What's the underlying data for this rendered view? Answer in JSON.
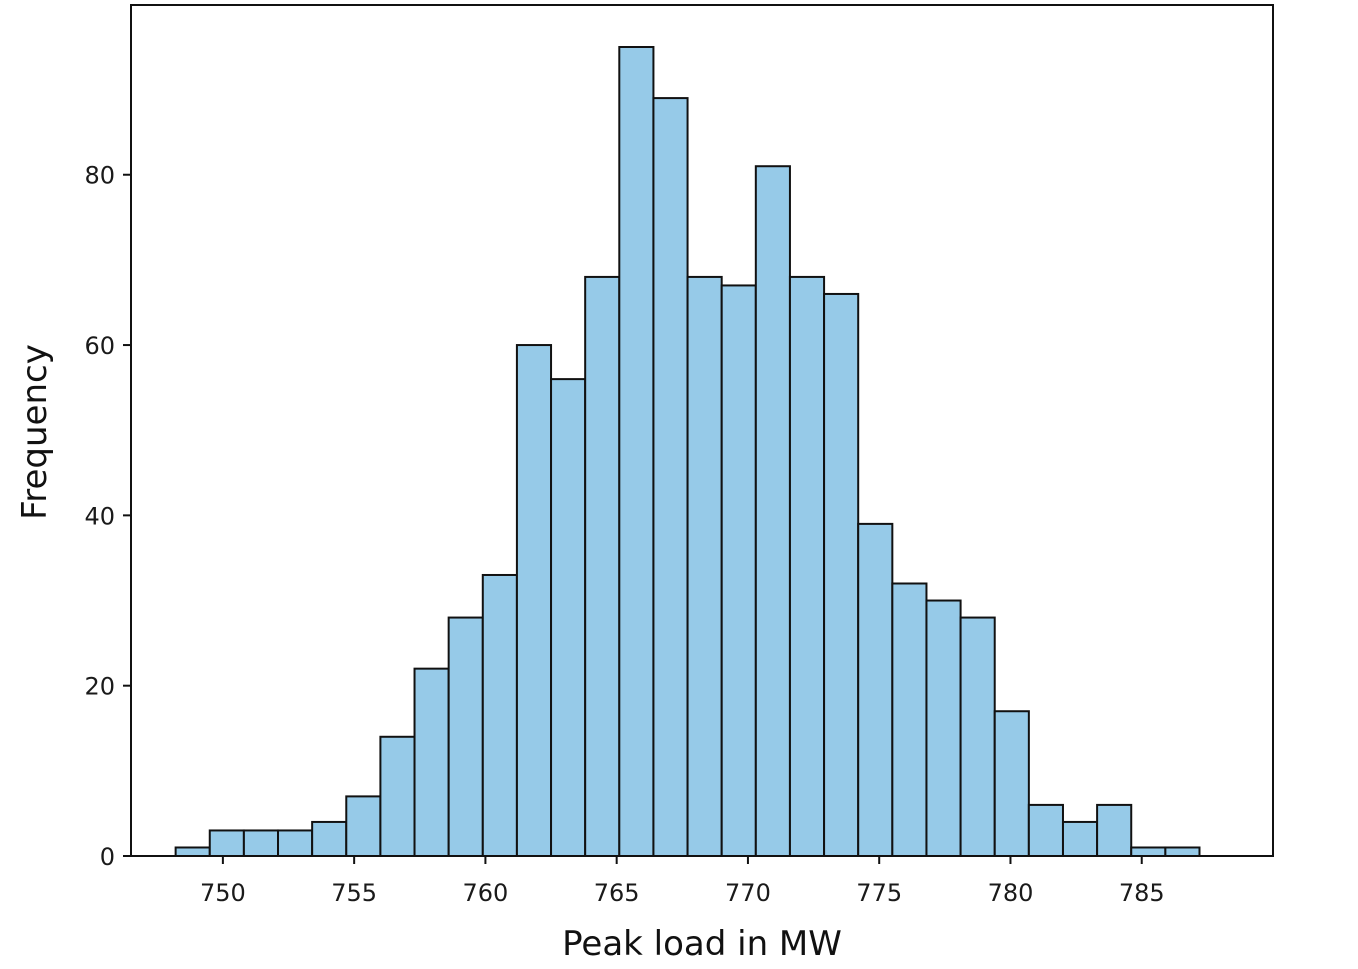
{
  "chart_data": {
    "type": "bar",
    "subtype": "histogram",
    "xlabel": "Peak load in MW",
    "ylabel": "Frequency",
    "bin_edges": [
      748.2,
      749.5,
      750.8,
      752.1,
      753.4,
      754.7,
      756.0,
      757.3,
      758.6,
      759.9,
      761.2,
      762.5,
      763.8,
      765.1,
      766.4,
      767.7,
      769.0,
      770.3,
      771.6,
      772.9,
      774.2,
      775.5,
      776.8,
      778.1,
      779.4,
      780.7,
      782.0,
      783.3,
      784.6,
      785.9,
      787.2
    ],
    "values": [
      1,
      3,
      3,
      3,
      4,
      7,
      14,
      22,
      28,
      33,
      60,
      56,
      68,
      95,
      89,
      68,
      67,
      81,
      68,
      66,
      39,
      32,
      30,
      28,
      17,
      6,
      4,
      6,
      1,
      1
    ],
    "xlim": [
      746.5,
      790.0
    ],
    "ylim": [
      0,
      95
    ],
    "xticks": [
      750,
      755,
      760,
      765,
      770,
      775,
      780,
      785
    ],
    "yticks": [
      0,
      20,
      40,
      60,
      80
    ],
    "bar_color": "#96cae8",
    "edge_color": "#111111",
    "grid": false
  }
}
